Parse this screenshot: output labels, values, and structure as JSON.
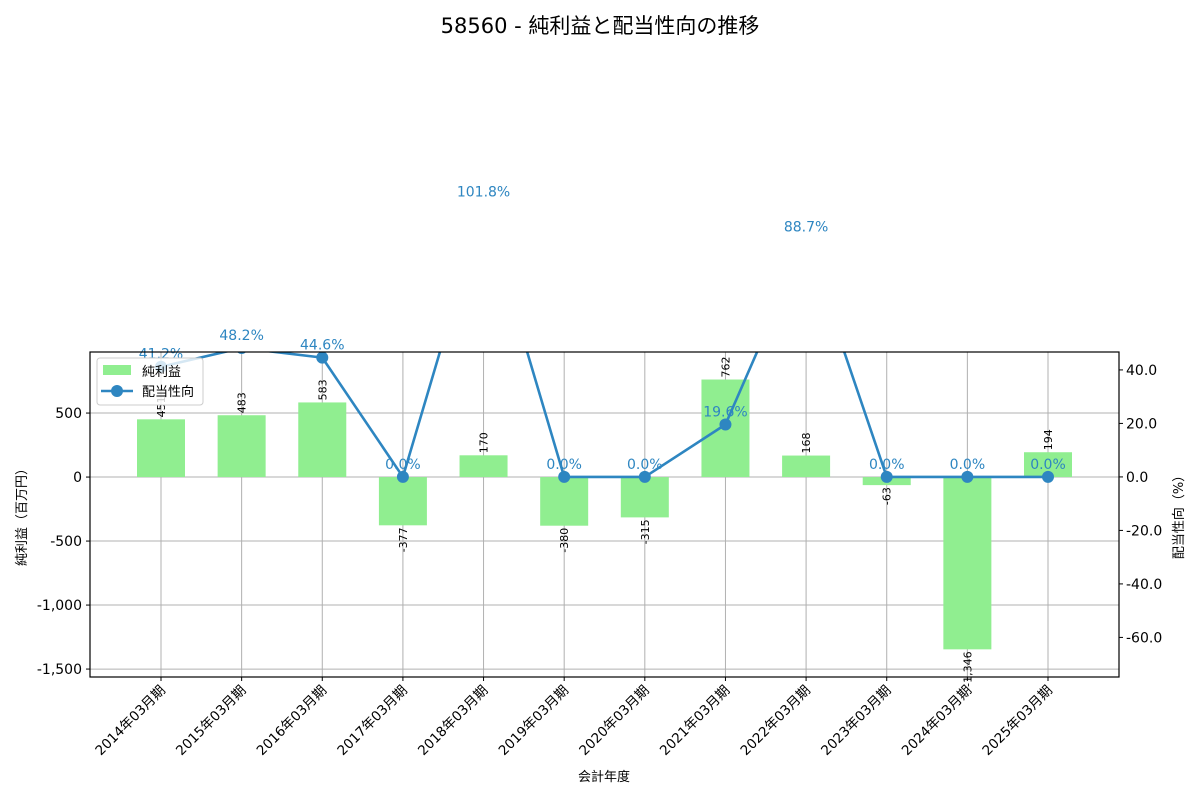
{
  "chart_data": {
    "type": "bar+line",
    "title": "58560 - 純利益と配当性向の推移",
    "xlabel": "会計年度",
    "ylabel_left": "純利益（百万円）",
    "ylabel_right": "配当性向（%）",
    "categories": [
      "2014年03月期",
      "2015年03月期",
      "2016年03月期",
      "2017年03月期",
      "2018年03月期",
      "2019年03月期",
      "2020年03月期",
      "2021年03月期",
      "2022年03月期",
      "2023年03月期",
      "2024年03月期",
      "2025年03月期"
    ],
    "series": [
      {
        "name": "純利益",
        "type": "bar",
        "axis": "left",
        "color": "#90ee90",
        "values": [
          451,
          483,
          583,
          -377,
          170,
          -380,
          -315,
          762,
          168,
          -63,
          -1346,
          194
        ],
        "labels": [
          "451",
          "483",
          "583",
          "-377",
          "170",
          "-380",
          "-315",
          "762",
          "168",
          "-63",
          "-1,346",
          "194"
        ]
      },
      {
        "name": "配当性向",
        "type": "line",
        "axis": "right",
        "color": "#2e86c1",
        "values": [
          41.2,
          48.2,
          44.6,
          0.0,
          101.8,
          0.0,
          0.0,
          19.6,
          88.7,
          0.0,
          0.0,
          0.0
        ],
        "labels": [
          "41.2%",
          "48.2%",
          "44.6%",
          "0.0%",
          "101.8%",
          "0.0%",
          "0.0%",
          "19.6%",
          "88.7%",
          "0.0%",
          "0.0%",
          "0.0%"
        ]
      }
    ],
    "ylim_left": [
      -1562,
      977
    ],
    "ylim_right": [
      -74.8,
      46.7
    ],
    "yticks_left": [
      500,
      0,
      -500,
      -1000,
      -1500
    ],
    "yticks_left_labels": [
      "500",
      "0",
      "-500",
      "-1,000",
      "-1,500"
    ],
    "yticks_right": [
      40,
      20,
      0,
      -20,
      -40,
      -60
    ],
    "yticks_right_labels": [
      "40.0",
      "20.0",
      "0.0",
      "-20.0",
      "-40.0",
      "-60.0"
    ],
    "grid": true,
    "legend": {
      "position": "upper left",
      "entries": [
        "純利益",
        "配当性向"
      ]
    }
  }
}
